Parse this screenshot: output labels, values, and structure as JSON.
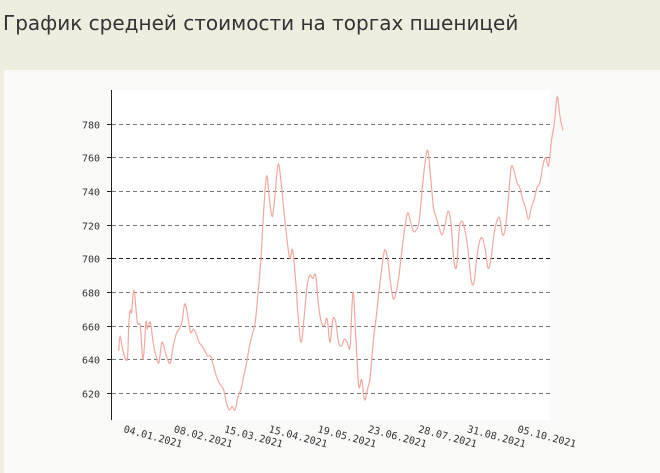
{
  "page": {
    "title": "График средней стоимости на торгах пшеницей"
  },
  "colors": {
    "background": "#efece0",
    "panel": "#fafaf9",
    "plot_area": "#ffffff",
    "line": "#f2a8a0",
    "grid": "#777777",
    "reference_line": "#222222",
    "axis": "#222222",
    "text": "#333333"
  },
  "chart_data": {
    "type": "line",
    "title": "",
    "xlabel": "",
    "ylabel": "",
    "ylim": [
      604,
      800
    ],
    "xlim": [
      "2020-12-26",
      "2021-10-28"
    ],
    "yticks": [
      620,
      640,
      660,
      680,
      700,
      720,
      740,
      760,
      780
    ],
    "reference_line": 700,
    "grid": "horizontal dashed",
    "legend": "none",
    "xticks": [
      {
        "date": "2021-01-04",
        "label": "04.01.2021"
      },
      {
        "date": "2021-02-08",
        "label": "08.02.2021"
      },
      {
        "date": "2021-03-15",
        "label": "15.03.2021"
      },
      {
        "date": "2021-04-15",
        "label": "15.04.2021"
      },
      {
        "date": "2021-05-19",
        "label": "19.05.2021"
      },
      {
        "date": "2021-06-23",
        "label": "23.06.2021"
      },
      {
        "date": "2021-07-28",
        "label": "28.07.2021"
      },
      {
        "date": "2021-08-31",
        "label": "31.08.2021"
      },
      {
        "date": "2021-10-05",
        "label": "05.10.2021"
      }
    ],
    "series": [
      {
        "points": [
          [
            "2021-01-01",
            645
          ],
          [
            "2021-01-02",
            654
          ],
          [
            "2021-01-04",
            645
          ],
          [
            "2021-01-07",
            640
          ],
          [
            "2021-01-08",
            660
          ],
          [
            "2021-01-09",
            669
          ],
          [
            "2021-01-10",
            668
          ],
          [
            "2021-01-11",
            678
          ],
          [
            "2021-01-12",
            680
          ],
          [
            "2021-01-14",
            662
          ],
          [
            "2021-01-16",
            660
          ],
          [
            "2021-01-18",
            640
          ],
          [
            "2021-01-20",
            662
          ],
          [
            "2021-01-21",
            658
          ],
          [
            "2021-01-23",
            662
          ],
          [
            "2021-01-25",
            650
          ],
          [
            "2021-01-27",
            642
          ],
          [
            "2021-01-29",
            638
          ],
          [
            "2021-01-31",
            650
          ],
          [
            "2021-02-02",
            646
          ],
          [
            "2021-02-04",
            640
          ],
          [
            "2021-02-06",
            638
          ],
          [
            "2021-02-08",
            648
          ],
          [
            "2021-02-10",
            655
          ],
          [
            "2021-02-12",
            658
          ],
          [
            "2021-02-14",
            662
          ],
          [
            "2021-02-16",
            673
          ],
          [
            "2021-02-18",
            666
          ],
          [
            "2021-02-20",
            656
          ],
          [
            "2021-02-22",
            658
          ],
          [
            "2021-02-24",
            655
          ],
          [
            "2021-02-26",
            650
          ],
          [
            "2021-02-28",
            648
          ],
          [
            "2021-03-02",
            645
          ],
          [
            "2021-03-04",
            642
          ],
          [
            "2021-03-06",
            642
          ],
          [
            "2021-03-08",
            636
          ],
          [
            "2021-03-10",
            630
          ],
          [
            "2021-03-12",
            626
          ],
          [
            "2021-03-15",
            622
          ],
          [
            "2021-03-17",
            614
          ],
          [
            "2021-03-19",
            610
          ],
          [
            "2021-03-21",
            612
          ],
          [
            "2021-03-23",
            610
          ],
          [
            "2021-03-25",
            618
          ],
          [
            "2021-03-27",
            622
          ],
          [
            "2021-03-29",
            630
          ],
          [
            "2021-03-31",
            638
          ],
          [
            "2021-04-02",
            648
          ],
          [
            "2021-04-04",
            655
          ],
          [
            "2021-04-06",
            662
          ],
          [
            "2021-04-08",
            680
          ],
          [
            "2021-04-10",
            700
          ],
          [
            "2021-04-12",
            730
          ],
          [
            "2021-04-14",
            749
          ],
          [
            "2021-04-16",
            734
          ],
          [
            "2021-04-18",
            725
          ],
          [
            "2021-04-20",
            740
          ],
          [
            "2021-04-22",
            756
          ],
          [
            "2021-04-24",
            745
          ],
          [
            "2021-04-26",
            728
          ],
          [
            "2021-04-28",
            712
          ],
          [
            "2021-04-30",
            700
          ],
          [
            "2021-05-02",
            705
          ],
          [
            "2021-05-04",
            688
          ],
          [
            "2021-05-06",
            664
          ],
          [
            "2021-05-08",
            650
          ],
          [
            "2021-05-10",
            665
          ],
          [
            "2021-05-12",
            683
          ],
          [
            "2021-05-14",
            690
          ],
          [
            "2021-05-16",
            688
          ],
          [
            "2021-05-18",
            690
          ],
          [
            "2021-05-20",
            672
          ],
          [
            "2021-05-22",
            662
          ],
          [
            "2021-05-24",
            660
          ],
          [
            "2021-05-26",
            664
          ],
          [
            "2021-05-28",
            650
          ],
          [
            "2021-05-30",
            664
          ],
          [
            "2021-06-01",
            662
          ],
          [
            "2021-06-03",
            650
          ],
          [
            "2021-06-05",
            648
          ],
          [
            "2021-06-07",
            652
          ],
          [
            "2021-06-09",
            650
          ],
          [
            "2021-06-11",
            648
          ],
          [
            "2021-06-13",
            680
          ],
          [
            "2021-06-15",
            652
          ],
          [
            "2021-06-17",
            624
          ],
          [
            "2021-06-19",
            628
          ],
          [
            "2021-06-21",
            616
          ],
          [
            "2021-06-23",
            622
          ],
          [
            "2021-06-25",
            630
          ],
          [
            "2021-06-27",
            650
          ],
          [
            "2021-06-29",
            664
          ],
          [
            "2021-07-01",
            680
          ],
          [
            "2021-07-03",
            694
          ],
          [
            "2021-07-05",
            705
          ],
          [
            "2021-07-07",
            700
          ],
          [
            "2021-07-09",
            686
          ],
          [
            "2021-07-11",
            676
          ],
          [
            "2021-07-13",
            680
          ],
          [
            "2021-07-15",
            690
          ],
          [
            "2021-07-17",
            705
          ],
          [
            "2021-07-19",
            718
          ],
          [
            "2021-07-21",
            727
          ],
          [
            "2021-07-23",
            722
          ],
          [
            "2021-07-25",
            716
          ],
          [
            "2021-07-27",
            717
          ],
          [
            "2021-07-29",
            722
          ],
          [
            "2021-07-31",
            740
          ],
          [
            "2021-08-02",
            756
          ],
          [
            "2021-08-04",
            764
          ],
          [
            "2021-08-06",
            748
          ],
          [
            "2021-08-08",
            730
          ],
          [
            "2021-08-10",
            724
          ],
          [
            "2021-08-12",
            718
          ],
          [
            "2021-08-14",
            714
          ],
          [
            "2021-08-16",
            720
          ],
          [
            "2021-08-18",
            728
          ],
          [
            "2021-08-20",
            722
          ],
          [
            "2021-08-22",
            700
          ],
          [
            "2021-08-24",
            695
          ],
          [
            "2021-08-26",
            718
          ],
          [
            "2021-08-28",
            722
          ],
          [
            "2021-08-30",
            716
          ],
          [
            "2021-09-01",
            705
          ],
          [
            "2021-09-03",
            688
          ],
          [
            "2021-09-05",
            685
          ],
          [
            "2021-09-07",
            700
          ],
          [
            "2021-09-09",
            710
          ],
          [
            "2021-09-11",
            712
          ],
          [
            "2021-09-13",
            705
          ],
          [
            "2021-09-15",
            694
          ],
          [
            "2021-09-17",
            700
          ],
          [
            "2021-09-19",
            714
          ],
          [
            "2021-09-21",
            722
          ],
          [
            "2021-09-23",
            724
          ],
          [
            "2021-09-25",
            714
          ],
          [
            "2021-09-27",
            718
          ],
          [
            "2021-09-29",
            735
          ],
          [
            "2021-10-01",
            754
          ],
          [
            "2021-10-03",
            752
          ],
          [
            "2021-10-05",
            745
          ],
          [
            "2021-10-07",
            742
          ],
          [
            "2021-10-09",
            735
          ],
          [
            "2021-10-11",
            730
          ],
          [
            "2021-10-13",
            723
          ],
          [
            "2021-10-15",
            730
          ],
          [
            "2021-10-17",
            735
          ],
          [
            "2021-10-19",
            742
          ],
          [
            "2021-10-21",
            745
          ],
          [
            "2021-10-23",
            755
          ],
          [
            "2021-10-25",
            760
          ],
          [
            "2021-10-27",
            755
          ],
          [
            "2021-10-29",
            770
          ],
          [
            "2021-10-31",
            780
          ],
          [
            "2021-11-02",
            796
          ],
          [
            "2021-11-04",
            784
          ],
          [
            "2021-11-06",
            776
          ]
        ]
      }
    ]
  }
}
